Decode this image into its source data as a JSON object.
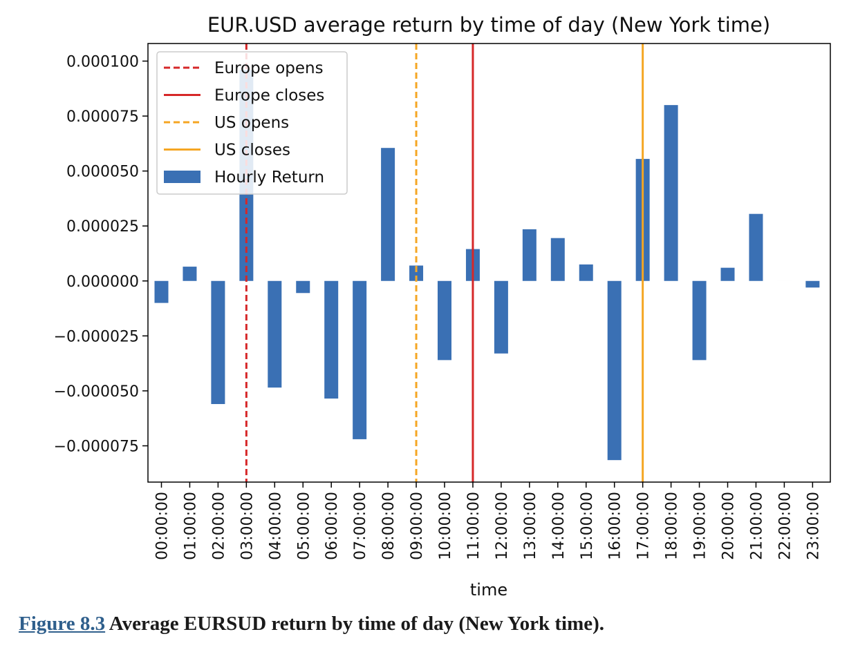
{
  "chart_data": {
    "type": "bar",
    "title": "EUR.USD average return by time of day (New York time)",
    "xlabel": "time",
    "ylabel": "",
    "categories": [
      "00:00:00",
      "01:00:00",
      "02:00:00",
      "03:00:00",
      "04:00:00",
      "05:00:00",
      "06:00:00",
      "07:00:00",
      "08:00:00",
      "09:00:00",
      "10:00:00",
      "11:00:00",
      "12:00:00",
      "13:00:00",
      "14:00:00",
      "15:00:00",
      "16:00:00",
      "17:00:00",
      "18:00:00",
      "19:00:00",
      "20:00:00",
      "21:00:00",
      "22:00:00",
      "23:00:00"
    ],
    "series": [
      {
        "name": "Hourly Return",
        "color": "#3a70b4",
        "values": [
          -1e-05,
          6.5e-06,
          -5.6e-05,
          9.6e-05,
          -4.85e-05,
          -5.5e-06,
          -5.35e-05,
          -7.2e-05,
          6.05e-05,
          7e-06,
          -3.6e-05,
          1.45e-05,
          -3.3e-05,
          2.35e-05,
          1.95e-05,
          7.5e-06,
          -8.15e-05,
          5.55e-05,
          8e-05,
          -3.6e-05,
          6e-06,
          3.05e-05,
          0.0,
          -3e-06
        ]
      }
    ],
    "vlines": [
      {
        "name": "Europe opens",
        "category": "03:00:00",
        "style": "dashed",
        "color": "#d62728"
      },
      {
        "name": "Europe closes",
        "category": "11:00:00",
        "style": "solid",
        "color": "#d62728"
      },
      {
        "name": "US opens",
        "category": "09:00:00",
        "style": "dashed",
        "color": "#f5a623"
      },
      {
        "name": "US closes",
        "category": "17:00:00",
        "style": "solid",
        "color": "#f5a623"
      }
    ],
    "yticks": [
      "0.000100",
      "0.000075",
      "0.000050",
      "0.000025",
      "0.000000",
      "−0.000025",
      "−0.000050",
      "−0.000075"
    ],
    "ytick_values": [
      0.0001,
      7.5e-05,
      5e-05,
      2.5e-05,
      0,
      -2.5e-05,
      -5e-05,
      -7.5e-05
    ],
    "ylim": [
      -9.15e-05,
      0.000108
    ],
    "grid": false,
    "legend_position": "top-left"
  },
  "caption": {
    "figure_label": "Figure 8.3",
    "text": " Average EURSUD return by time of day (New York time)."
  }
}
